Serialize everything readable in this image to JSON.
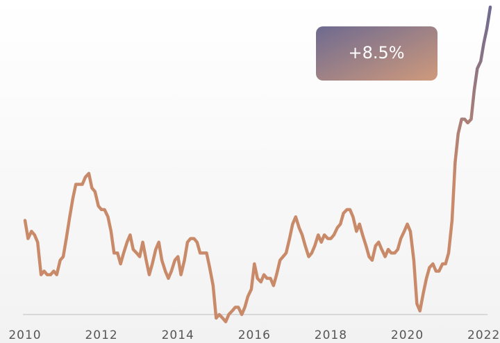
{
  "chart_data": {
    "type": "line",
    "annotation": "+8.5%",
    "x": [
      2010,
      2010.08,
      2010.17,
      2010.25,
      2010.33,
      2010.42,
      2010.5,
      2010.58,
      2010.67,
      2010.75,
      2010.83,
      2010.92,
      2011,
      2011.08,
      2011.17,
      2011.25,
      2011.33,
      2011.42,
      2011.5,
      2011.58,
      2011.67,
      2011.75,
      2011.83,
      2011.92,
      2012,
      2012.08,
      2012.17,
      2012.25,
      2012.33,
      2012.42,
      2012.5,
      2012.58,
      2012.67,
      2012.75,
      2012.83,
      2012.92,
      2013,
      2013.08,
      2013.17,
      2013.25,
      2013.33,
      2013.42,
      2013.5,
      2013.58,
      2013.67,
      2013.75,
      2013.83,
      2013.92,
      2014,
      2014.08,
      2014.17,
      2014.25,
      2014.33,
      2014.42,
      2014.5,
      2014.58,
      2014.67,
      2014.75,
      2014.83,
      2014.92,
      2015,
      2015.08,
      2015.17,
      2015.25,
      2015.33,
      2015.42,
      2015.5,
      2015.58,
      2015.67,
      2015.75,
      2015.83,
      2015.92,
      2016,
      2016.08,
      2016.17,
      2016.25,
      2016.33,
      2016.42,
      2016.5,
      2016.58,
      2016.67,
      2016.75,
      2016.83,
      2016.92,
      2017,
      2017.08,
      2017.17,
      2017.25,
      2017.33,
      2017.42,
      2017.5,
      2017.58,
      2017.67,
      2017.75,
      2017.83,
      2017.92,
      2018,
      2018.08,
      2018.17,
      2018.25,
      2018.33,
      2018.42,
      2018.5,
      2018.58,
      2018.67,
      2018.75,
      2018.83,
      2018.92,
      2019,
      2019.08,
      2019.17,
      2019.25,
      2019.33,
      2019.42,
      2019.5,
      2019.58,
      2019.67,
      2019.75,
      2019.83,
      2019.92,
      2020,
      2020.08,
      2020.17,
      2020.25,
      2020.33,
      2020.42,
      2020.5,
      2020.58,
      2020.67,
      2020.75,
      2020.83,
      2020.92,
      2021,
      2021.08,
      2021.17,
      2021.25,
      2021.33,
      2021.42,
      2021.5,
      2021.58,
      2021.67,
      2021.75,
      2021.83,
      2021.92,
      2022,
      2022.08,
      2022.17
    ],
    "series": [
      {
        "color": "#c98a6a",
        "values": [
          2.6,
          2.1,
          2.3,
          2.2,
          2.0,
          1.1,
          1.2,
          1.1,
          1.1,
          1.2,
          1.1,
          1.5,
          1.6,
          2.1,
          2.7,
          3.2,
          3.6,
          3.6,
          3.6,
          3.8,
          3.9,
          3.5,
          3.4,
          3.0,
          2.9,
          2.9,
          2.7,
          2.3,
          1.7,
          1.7,
          1.4,
          1.7,
          2.0,
          2.2,
          1.8,
          1.7,
          1.6,
          2.0,
          1.5,
          1.1,
          1.4,
          1.8,
          2.0,
          1.5,
          1.2,
          1.0,
          1.2,
          1.5,
          1.6,
          1.1,
          1.5,
          2.0,
          2.1,
          2.1,
          2.0,
          1.7,
          1.7,
          1.7,
          1.3,
          0.8,
          -0.1,
          0.0,
          -0.1,
          -0.2,
          0.0,
          0.1,
          0.2,
          0.2,
          0.0,
          0.2,
          0.5,
          0.7,
          1.4,
          1.0,
          0.9,
          1.1,
          1.0,
          1.0,
          0.8,
          1.1,
          1.5,
          1.6,
          1.7,
          2.1,
          2.5,
          2.7,
          2.4,
          2.2,
          1.9,
          1.6,
          1.7,
          1.9,
          2.2,
          2.0,
          2.2,
          2.1,
          2.1,
          2.2,
          2.4,
          2.5,
          2.8,
          2.9,
          2.9,
          2.7,
          2.3,
          2.5,
          2.2,
          1.9,
          1.6,
          1.5,
          1.9,
          2.0,
          1.8,
          1.6,
          1.8,
          1.7,
          1.7,
          1.8,
          2.1,
          2.3,
          2.5,
          2.3,
          1.5,
          0.3,
          0.1,
          0.6,
          1.0,
          1.3,
          1.4,
          1.2,
          1.2,
          1.4,
          1.4,
          1.7,
          2.6,
          4.2,
          5.0,
          5.4,
          5.4,
          5.3,
          5.4,
          6.2,
          6.8,
          7.0,
          7.5,
          7.9,
          8.5
        ]
      }
    ],
    "xlim": [
      2010,
      2022.17
    ],
    "xticks": [
      2010,
      2012,
      2014,
      2016,
      2018,
      2020,
      2022
    ],
    "ylim": [
      -0.5,
      8.6
    ]
  }
}
